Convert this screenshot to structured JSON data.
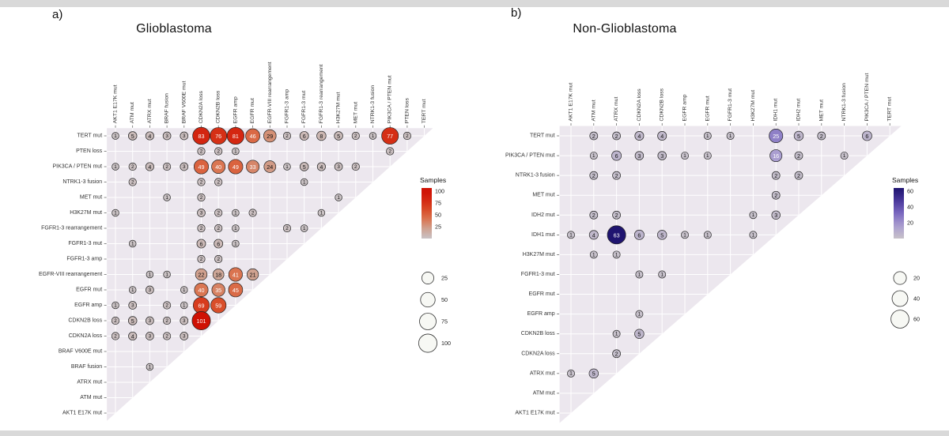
{
  "chart_data": [
    {
      "type": "bubble-matrix",
      "panel_letter": "a)",
      "title": "Glioblastoma",
      "legend_title": "Samples",
      "panel_bg": "#ece7ee",
      "color_stops": [
        [
          0,
          "#c9c2c5"
        ],
        [
          0.2,
          "#cfa493"
        ],
        [
          0.4,
          "#da7551"
        ],
        [
          0.6,
          "#d94b27"
        ],
        [
          0.8,
          "#d42711"
        ],
        [
          1,
          "#cf1104"
        ]
      ],
      "gradient_ticks": [
        100,
        75,
        50,
        25
      ],
      "gradient_max": 107,
      "size_ticks": [
        25,
        50,
        75,
        100
      ],
      "vmax": 101,
      "white_text_min": 30,
      "columns": [
        "AKT1 E17K mut",
        "ATM mut",
        "ATRX mut",
        "BRAF fusion",
        "BRAF V600E mut",
        "CDKN2A loss",
        "CDKN2B loss",
        "EGFR amp",
        "EGFR mut",
        "EGFR-VIII rearrangement",
        "FGFR1-3 amp",
        "FGFR1-3 mut",
        "FGFR1-3 rearrangement",
        "H3K27M mut",
        "MET mut",
        "NTRK1-3 fusion",
        "PIK3CA / PTEN mut",
        "PTEN loss",
        "TERT mut"
      ],
      "rows": [
        "TERT mut",
        "PTEN loss",
        "PIK3CA / PTEN mut",
        "NTRK1-3 fusion",
        "MET mut",
        "H3K27M mut",
        "FGFR1-3 rearrangement",
        "FGFR1-3 mut",
        "FGFR1-3 amp",
        "EGFR-VIII rearrangement",
        "EGFR mut",
        "EGFR amp",
        "CDKN2B loss",
        "CDKN2A loss",
        "BRAF V600E mut",
        "BRAF fusion",
        "ATRX mut",
        "ATM mut",
        "AKT1 E17K mut"
      ],
      "cells": [
        [
          "TERT mut",
          "AKT1 E17K mut",
          1
        ],
        [
          "TERT mut",
          "ATM mut",
          5
        ],
        [
          "TERT mut",
          "ATRX mut",
          4
        ],
        [
          "TERT mut",
          "BRAF fusion",
          3
        ],
        [
          "TERT mut",
          "BRAF V600E mut",
          3
        ],
        [
          "TERT mut",
          "CDKN2A loss",
          83
        ],
        [
          "TERT mut",
          "CDKN2B loss",
          76
        ],
        [
          "TERT mut",
          "EGFR amp",
          81
        ],
        [
          "TERT mut",
          "EGFR mut",
          46
        ],
        [
          "TERT mut",
          "EGFR-VIII rearrangement",
          29
        ],
        [
          "TERT mut",
          "FGFR1-3 amp",
          2
        ],
        [
          "TERT mut",
          "FGFR1-3 mut",
          6
        ],
        [
          "TERT mut",
          "FGFR1-3 rearrangement",
          8
        ],
        [
          "TERT mut",
          "H3K27M mut",
          5
        ],
        [
          "TERT mut",
          "MET mut",
          2
        ],
        [
          "TERT mut",
          "NTRK1-3 fusion",
          1
        ],
        [
          "TERT mut",
          "PIK3CA / PTEN mut",
          77
        ],
        [
          "TERT mut",
          "PTEN loss",
          2
        ],
        [
          "PTEN loss",
          "CDKN2A loss",
          2
        ],
        [
          "PTEN loss",
          "CDKN2B loss",
          2
        ],
        [
          "PTEN loss",
          "EGFR amp",
          1
        ],
        [
          "PTEN loss",
          "PIK3CA / PTEN mut",
          2
        ],
        [
          "PIK3CA / PTEN mut",
          "AKT1 E17K mut",
          1
        ],
        [
          "PIK3CA / PTEN mut",
          "ATM mut",
          2
        ],
        [
          "PIK3CA / PTEN mut",
          "ATRX mut",
          4
        ],
        [
          "PIK3CA / PTEN mut",
          "BRAF fusion",
          2
        ],
        [
          "PIK3CA / PTEN mut",
          "BRAF V600E mut",
          3
        ],
        [
          "PIK3CA / PTEN mut",
          "CDKN2A loss",
          49
        ],
        [
          "PIK3CA / PTEN mut",
          "CDKN2B loss",
          40
        ],
        [
          "PIK3CA / PTEN mut",
          "EGFR amp",
          49
        ],
        [
          "PIK3CA / PTEN mut",
          "EGFR mut",
          33
        ],
        [
          "PIK3CA / PTEN mut",
          "EGFR-VIII rearrangement",
          24
        ],
        [
          "PIK3CA / PTEN mut",
          "FGFR1-3 amp",
          1
        ],
        [
          "PIK3CA / PTEN mut",
          "FGFR1-3 mut",
          5
        ],
        [
          "PIK3CA / PTEN mut",
          "FGFR1-3 rearrangement",
          4
        ],
        [
          "PIK3CA / PTEN mut",
          "H3K27M mut",
          3
        ],
        [
          "PIK3CA / PTEN mut",
          "MET mut",
          2
        ],
        [
          "NTRK1-3 fusion",
          "ATM mut",
          2
        ],
        [
          "NTRK1-3 fusion",
          "CDKN2A loss",
          2
        ],
        [
          "NTRK1-3 fusion",
          "CDKN2B loss",
          2
        ],
        [
          "NTRK1-3 fusion",
          "FGFR1-3 mut",
          1
        ],
        [
          "MET mut",
          "BRAF fusion",
          1
        ],
        [
          "MET mut",
          "CDKN2A loss",
          2
        ],
        [
          "MET mut",
          "H3K27M mut",
          1
        ],
        [
          "H3K27M mut",
          "AKT1 E17K mut",
          1
        ],
        [
          "H3K27M mut",
          "CDKN2A loss",
          3
        ],
        [
          "H3K27M mut",
          "CDKN2B loss",
          2
        ],
        [
          "H3K27M mut",
          "EGFR amp",
          1
        ],
        [
          "H3K27M mut",
          "EGFR mut",
          2
        ],
        [
          "H3K27M mut",
          "FGFR1-3 rearrangement",
          1
        ],
        [
          "FGFR1-3 rearrangement",
          "CDKN2A loss",
          2
        ],
        [
          "FGFR1-3 rearrangement",
          "CDKN2B loss",
          2
        ],
        [
          "FGFR1-3 rearrangement",
          "EGFR amp",
          1
        ],
        [
          "FGFR1-3 rearrangement",
          "FGFR1-3 amp",
          2
        ],
        [
          "FGFR1-3 rearrangement",
          "FGFR1-3 mut",
          1
        ],
        [
          "FGFR1-3 mut",
          "ATM mut",
          1
        ],
        [
          "FGFR1-3 mut",
          "CDKN2A loss",
          6
        ],
        [
          "FGFR1-3 mut",
          "CDKN2B loss",
          6
        ],
        [
          "FGFR1-3 mut",
          "EGFR amp",
          1
        ],
        [
          "FGFR1-3 amp",
          "CDKN2A loss",
          2
        ],
        [
          "FGFR1-3 amp",
          "CDKN2B loss",
          2
        ],
        [
          "EGFR-VIII rearrangement",
          "ATRX mut",
          1
        ],
        [
          "EGFR-VIII rearrangement",
          "BRAF fusion",
          1
        ],
        [
          "EGFR-VIII rearrangement",
          "CDKN2A loss",
          22
        ],
        [
          "EGFR-VIII rearrangement",
          "CDKN2B loss",
          18
        ],
        [
          "EGFR-VIII rearrangement",
          "EGFR amp",
          41
        ],
        [
          "EGFR-VIII rearrangement",
          "EGFR mut",
          21
        ],
        [
          "EGFR mut",
          "ATM mut",
          1
        ],
        [
          "EGFR mut",
          "ATRX mut",
          3
        ],
        [
          "EGFR mut",
          "BRAF V600E mut",
          1
        ],
        [
          "EGFR mut",
          "CDKN2A loss",
          40
        ],
        [
          "EGFR mut",
          "CDKN2B loss",
          35
        ],
        [
          "EGFR mut",
          "EGFR amp",
          45
        ],
        [
          "EGFR amp",
          "AKT1 E17K mut",
          1
        ],
        [
          "EGFR amp",
          "ATM mut",
          3
        ],
        [
          "EGFR amp",
          "BRAF fusion",
          2
        ],
        [
          "EGFR amp",
          "BRAF V600E mut",
          1
        ],
        [
          "EGFR amp",
          "CDKN2A loss",
          69
        ],
        [
          "EGFR amp",
          "CDKN2B loss",
          59
        ],
        [
          "CDKN2B loss",
          "AKT1 E17K mut",
          2
        ],
        [
          "CDKN2B loss",
          "ATM mut",
          5
        ],
        [
          "CDKN2B loss",
          "ATRX mut",
          3
        ],
        [
          "CDKN2B loss",
          "BRAF fusion",
          2
        ],
        [
          "CDKN2B loss",
          "BRAF V600E mut",
          3
        ],
        [
          "CDKN2B loss",
          "CDKN2A loss",
          101
        ],
        [
          "CDKN2A loss",
          "AKT1 E17K mut",
          2
        ],
        [
          "CDKN2A loss",
          "ATM mut",
          4
        ],
        [
          "CDKN2A loss",
          "ATRX mut",
          3
        ],
        [
          "CDKN2A loss",
          "BRAF fusion",
          2
        ],
        [
          "CDKN2A loss",
          "BRAF V600E mut",
          3
        ],
        [
          "BRAF fusion",
          "ATRX mut",
          1
        ]
      ]
    },
    {
      "type": "bubble-matrix",
      "panel_letter": "b)",
      "title": "Non-Glioblastoma",
      "legend_title": "Samples",
      "panel_bg": "#ece7ee",
      "color_stops": [
        [
          0,
          "#c7c1c9"
        ],
        [
          0.25,
          "#ab9fd0"
        ],
        [
          0.5,
          "#7c6ac0"
        ],
        [
          0.75,
          "#4b3a9e"
        ],
        [
          1,
          "#1f1470"
        ]
      ],
      "gradient_ticks": [
        60,
        40,
        20
      ],
      "gradient_max": 64,
      "size_ticks": [
        20,
        40,
        60
      ],
      "vmax": 63,
      "white_text_min": 14,
      "columns": [
        "AKT1 E17K mut",
        "ATM mut",
        "ATRX mut",
        "CDKN2A loss",
        "CDKN2B loss",
        "EGFR amp",
        "EGFR mut",
        "FGFR1-3 mut",
        "H3K27M mut",
        "IDH1 mut",
        "IDH2 mut",
        "MET mut",
        "NTRK1-3 fusion",
        "PIK3CA / PTEN mut",
        "TERT mut"
      ],
      "rows": [
        "TERT mut",
        "PIK3CA / PTEN mut",
        "NTRK1-3 fusion",
        "MET mut",
        "IDH2 mut",
        "IDH1 mut",
        "H3K27M mut",
        "FGFR1-3 mut",
        "EGFR mut",
        "EGFR amp",
        "CDKN2B loss",
        "CDKN2A loss",
        "ATRX mut",
        "ATM mut",
        "AKT1 E17K mut"
      ],
      "cells": [
        [
          "TERT mut",
          "ATM mut",
          2
        ],
        [
          "TERT mut",
          "ATRX mut",
          2
        ],
        [
          "TERT mut",
          "CDKN2A loss",
          4
        ],
        [
          "TERT mut",
          "CDKN2B loss",
          4
        ],
        [
          "TERT mut",
          "EGFR mut",
          1
        ],
        [
          "TERT mut",
          "FGFR1-3 mut",
          1
        ],
        [
          "TERT mut",
          "IDH1 mut",
          25
        ],
        [
          "TERT mut",
          "IDH2 mut",
          5
        ],
        [
          "TERT mut",
          "MET mut",
          2
        ],
        [
          "TERT mut",
          "PIK3CA / PTEN mut",
          6
        ],
        [
          "PIK3CA / PTEN mut",
          "ATM mut",
          1
        ],
        [
          "PIK3CA / PTEN mut",
          "ATRX mut",
          6
        ],
        [
          "PIK3CA / PTEN mut",
          "CDKN2A loss",
          3
        ],
        [
          "PIK3CA / PTEN mut",
          "CDKN2B loss",
          3
        ],
        [
          "PIK3CA / PTEN mut",
          "EGFR amp",
          1
        ],
        [
          "PIK3CA / PTEN mut",
          "EGFR mut",
          1
        ],
        [
          "PIK3CA / PTEN mut",
          "IDH1 mut",
          16
        ],
        [
          "PIK3CA / PTEN mut",
          "IDH2 mut",
          2
        ],
        [
          "PIK3CA / PTEN mut",
          "NTRK1-3 fusion",
          1
        ],
        [
          "NTRK1-3 fusion",
          "ATM mut",
          2
        ],
        [
          "NTRK1-3 fusion",
          "ATRX mut",
          2
        ],
        [
          "NTRK1-3 fusion",
          "IDH1 mut",
          2
        ],
        [
          "NTRK1-3 fusion",
          "IDH2 mut",
          2
        ],
        [
          "MET mut",
          "IDH1 mut",
          2
        ],
        [
          "IDH2 mut",
          "ATM mut",
          2
        ],
        [
          "IDH2 mut",
          "ATRX mut",
          2
        ],
        [
          "IDH2 mut",
          "H3K27M mut",
          1
        ],
        [
          "IDH2 mut",
          "IDH1 mut",
          3
        ],
        [
          "IDH1 mut",
          "AKT1 E17K mut",
          1
        ],
        [
          "IDH1 mut",
          "ATM mut",
          4
        ],
        [
          "IDH1 mut",
          "ATRX mut",
          63
        ],
        [
          "IDH1 mut",
          "CDKN2A loss",
          6
        ],
        [
          "IDH1 mut",
          "CDKN2B loss",
          5
        ],
        [
          "IDH1 mut",
          "EGFR amp",
          1
        ],
        [
          "IDH1 mut",
          "EGFR mut",
          1
        ],
        [
          "IDH1 mut",
          "H3K27M mut",
          1
        ],
        [
          "H3K27M mut",
          "ATM mut",
          1
        ],
        [
          "H3K27M mut",
          "ATRX mut",
          1
        ],
        [
          "FGFR1-3 mut",
          "CDKN2A loss",
          1
        ],
        [
          "FGFR1-3 mut",
          "CDKN2B loss",
          1
        ],
        [
          "EGFR amp",
          "CDKN2A loss",
          1
        ],
        [
          "CDKN2B loss",
          "ATRX mut",
          1
        ],
        [
          "CDKN2B loss",
          "CDKN2A loss",
          5
        ],
        [
          "CDKN2A loss",
          "ATRX mut",
          2
        ],
        [
          "ATRX mut",
          "AKT1 E17K mut",
          1
        ],
        [
          "ATRX mut",
          "ATM mut",
          5
        ]
      ]
    }
  ]
}
